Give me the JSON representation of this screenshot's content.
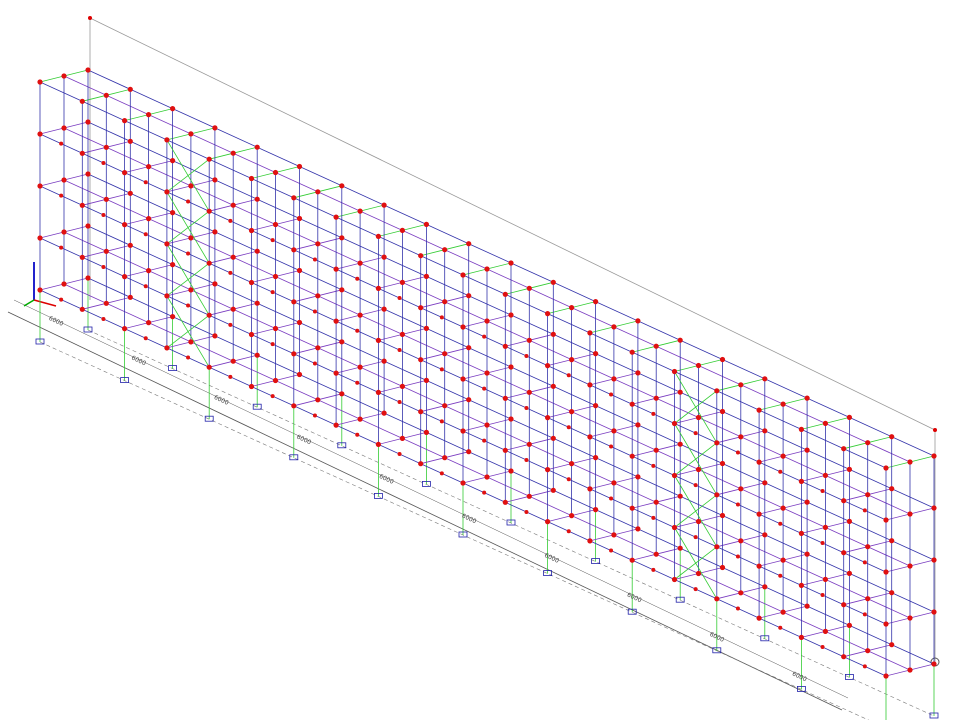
{
  "model_view": {
    "dimensions": [
      "6000",
      "6000",
      "6000",
      "6000",
      "6000",
      "6000",
      "6000",
      "6000",
      "6000",
      "6000"
    ]
  }
}
